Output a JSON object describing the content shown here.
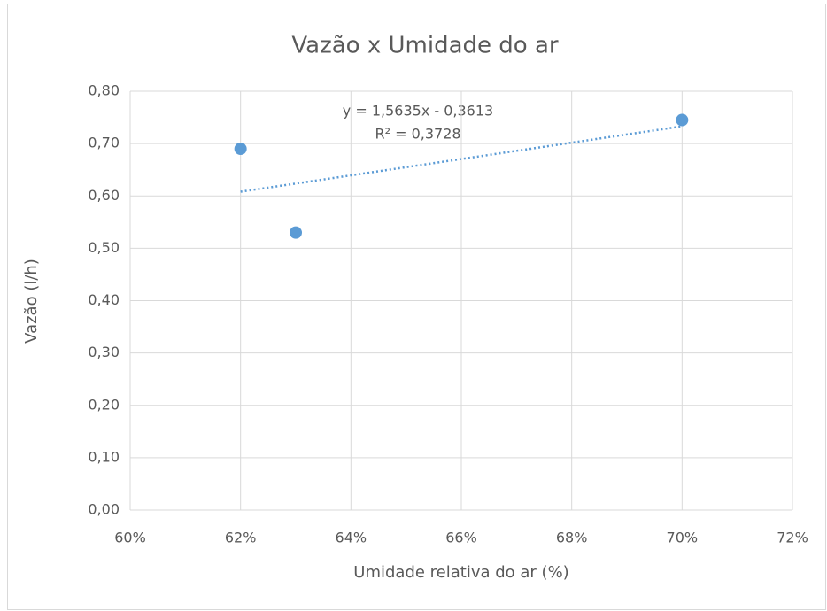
{
  "chart_data": {
    "type": "scatter",
    "title": "Vazão x Umidade do ar",
    "x_label": "Umidade relativa do ar (%)",
    "y_label": "Vazão (l/h)",
    "annotations": [
      "y = 1,5635x - 0,3613",
      "R² = 0,3728"
    ],
    "series": [
      {
        "x": [
          62,
          63,
          70
        ],
        "values": [
          0.69,
          0.53,
          0.745
        ],
        "color": "#5b9bd5"
      }
    ],
    "trendline": {
      "x": [
        62,
        70
      ],
      "values": [
        0.608,
        0.733
      ],
      "color": "#5b9bd5"
    },
    "xlim": [
      60,
      72
    ],
    "xticks": [
      {
        "value": 60,
        "label": "60%"
      },
      {
        "value": 62,
        "label": "62%"
      },
      {
        "value": 64,
        "label": "64%"
      },
      {
        "value": 66,
        "label": "66%"
      },
      {
        "value": 68,
        "label": "68%"
      },
      {
        "value": 70,
        "label": "70%"
      },
      {
        "value": 72,
        "label": "72%"
      }
    ],
    "ylim": [
      0,
      0.8
    ],
    "yticks": [
      {
        "value": 0,
        "label": "0,00"
      },
      {
        "value": 0.1,
        "label": "0,10"
      },
      {
        "value": 0.2,
        "label": "0,20"
      },
      {
        "value": 0.3,
        "label": "0,30"
      },
      {
        "value": 0.4,
        "label": "0,40"
      },
      {
        "value": 0.5,
        "label": "0,50"
      },
      {
        "value": 0.6,
        "label": "0,60"
      },
      {
        "value": 0.7,
        "label": "0,70"
      },
      {
        "value": 0.8,
        "label": "0,80"
      }
    ],
    "grid": true
  }
}
